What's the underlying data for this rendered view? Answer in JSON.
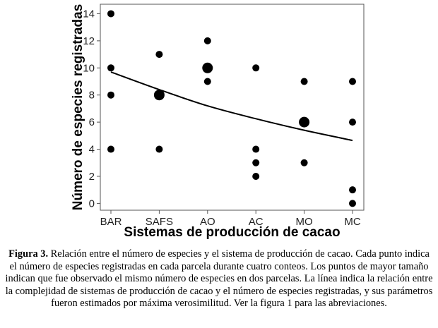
{
  "chart_data": {
    "type": "scatter",
    "xlabel": "Sistemas de producción de cacao",
    "ylabel": "Número de especies registradas",
    "categories": [
      "BAR",
      "SAFS",
      "AO",
      "AC",
      "MO",
      "MC"
    ],
    "ylim": [
      -0.5,
      14.7
    ],
    "yticks": [
      0,
      2,
      4,
      6,
      8,
      10,
      12,
      14
    ],
    "grid": false,
    "legend": "none",
    "points": [
      {
        "x": "BAR",
        "y": 14,
        "n": 1
      },
      {
        "x": "BAR",
        "y": 10,
        "n": 1
      },
      {
        "x": "BAR",
        "y": 8,
        "n": 1
      },
      {
        "x": "BAR",
        "y": 4,
        "n": 1
      },
      {
        "x": "SAFS",
        "y": 11,
        "n": 1
      },
      {
        "x": "SAFS",
        "y": 8,
        "n": 2
      },
      {
        "x": "SAFS",
        "y": 4,
        "n": 1
      },
      {
        "x": "AO",
        "y": 12,
        "n": 1
      },
      {
        "x": "AO",
        "y": 10,
        "n": 2
      },
      {
        "x": "AO",
        "y": 9,
        "n": 1
      },
      {
        "x": "AC",
        "y": 10,
        "n": 1
      },
      {
        "x": "AC",
        "y": 4,
        "n": 1
      },
      {
        "x": "AC",
        "y": 3,
        "n": 1
      },
      {
        "x": "AC",
        "y": 2,
        "n": 1
      },
      {
        "x": "MO",
        "y": 9,
        "n": 1
      },
      {
        "x": "MO",
        "y": 6,
        "n": 2
      },
      {
        "x": "MO",
        "y": 3,
        "n": 1
      },
      {
        "x": "MC",
        "y": 9,
        "n": 1
      },
      {
        "x": "MC",
        "y": 6,
        "n": 1
      },
      {
        "x": "MC",
        "y": 1,
        "n": 1
      },
      {
        "x": "MC",
        "y": 0,
        "n": 1
      }
    ],
    "fit_line": {
      "x": [
        "BAR",
        "SAFS",
        "AO",
        "AC",
        "MO",
        "MC"
      ],
      "y": [
        9.7,
        8.4,
        7.2,
        6.25,
        5.4,
        4.65
      ]
    },
    "colors": {
      "marker": "#000000",
      "line": "#000000",
      "frame": "#555555"
    }
  },
  "caption": {
    "label": "Figura 3.",
    "text": " Relación entre el número de especies y el sistema de producción de cacao. Cada punto indica el número de especies registradas en cada parcela durante cuatro conteos. Los puntos de mayor tamaño indican que fue observado el mismo número de especies en dos parcelas. La línea indica la relación entre la complejidad de sistemas de producción de cacao y el número de especies registradas, y sus parámetros fueron estimados por máxima verosimilitud. Ver la figura 1 para las abreviaciones."
  }
}
